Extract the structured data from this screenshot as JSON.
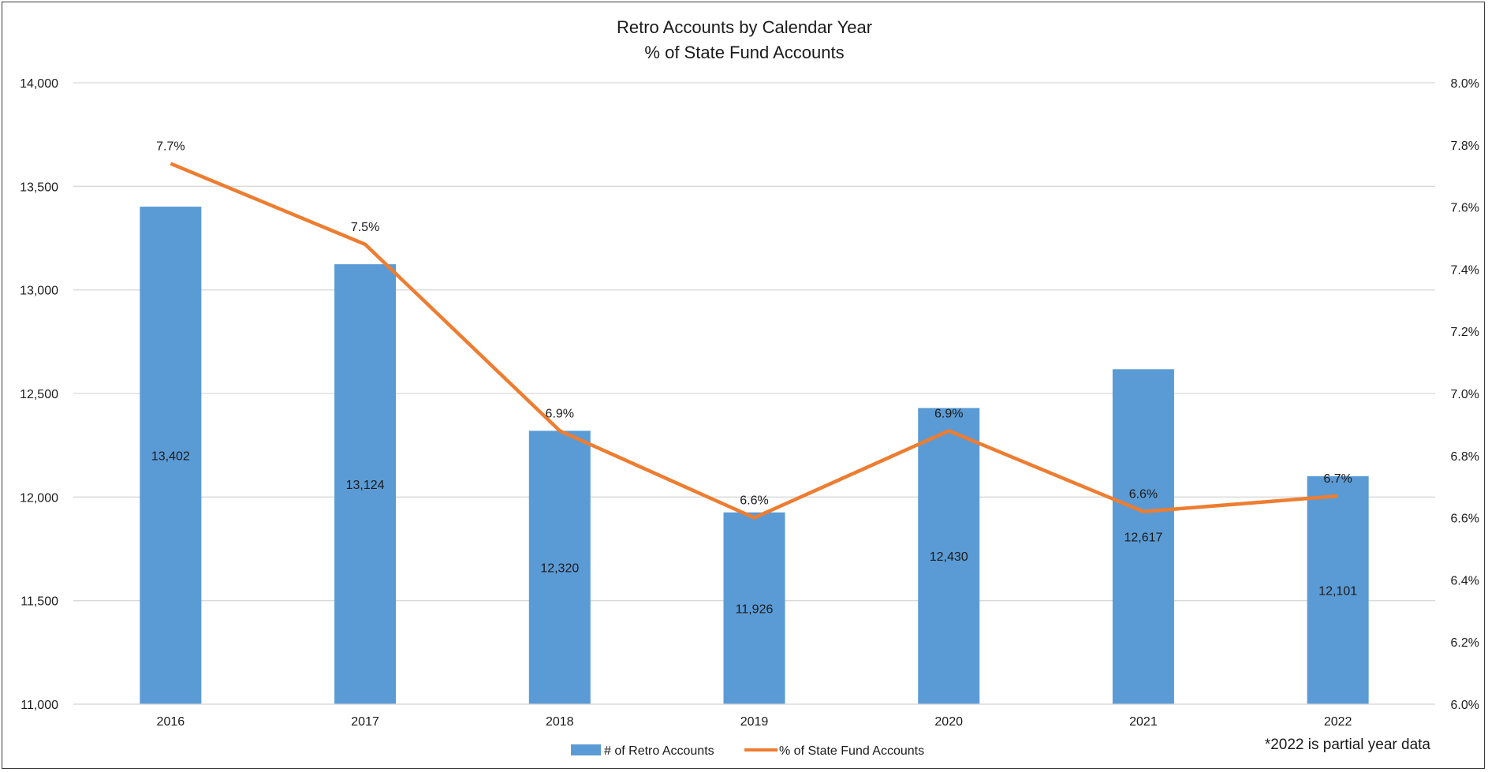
{
  "chart_data": {
    "type": "bar+line",
    "title": [
      "Retro Accounts by Calendar Year",
      "% of State Fund Accounts"
    ],
    "categories": [
      "2016",
      "2017",
      "2018",
      "2019",
      "2020",
      "2021",
      "2022"
    ],
    "series": [
      {
        "name": "# of Retro Accounts",
        "type": "bar",
        "axis": "left",
        "values": [
          13402,
          13124,
          12320,
          11926,
          12430,
          12617,
          12101
        ],
        "labels": [
          "13,402",
          "13,124",
          "12,320",
          "11,926",
          "12,430",
          "12,617",
          "12,101"
        ],
        "color": "#5b9bd5"
      },
      {
        "name": "% of State Fund Accounts",
        "type": "line",
        "axis": "right",
        "values": [
          7.74,
          7.48,
          6.88,
          6.6,
          6.88,
          6.62,
          6.67
        ],
        "labels": [
          "7.7%",
          "7.5%",
          "6.9%",
          "6.6%",
          "6.9%",
          "6.6%",
          "6.7%"
        ],
        "color": "#ed7d31"
      }
    ],
    "y_left": {
      "range": [
        11000,
        14000
      ],
      "ticks": [
        11000,
        11500,
        12000,
        12500,
        13000,
        13500,
        14000
      ],
      "tick_labels": [
        "11,000",
        "11,500",
        "12,000",
        "12,500",
        "13,000",
        "13,500",
        "14,000"
      ]
    },
    "y_right": {
      "range": [
        6.0,
        8.0
      ],
      "ticks": [
        6.0,
        6.2,
        6.4,
        6.6,
        6.8,
        7.0,
        7.2,
        7.4,
        7.6,
        7.8,
        8.0
      ],
      "tick_labels": [
        "6.0%",
        "6.2%",
        "6.4%",
        "6.6%",
        "6.8%",
        "7.0%",
        "7.2%",
        "7.4%",
        "7.6%",
        "7.8%",
        "8.0%"
      ]
    },
    "grid": true,
    "legend": "bottom-center",
    "gridline_color": "#d9d9d9",
    "note": "*2022 is partial year data"
  }
}
